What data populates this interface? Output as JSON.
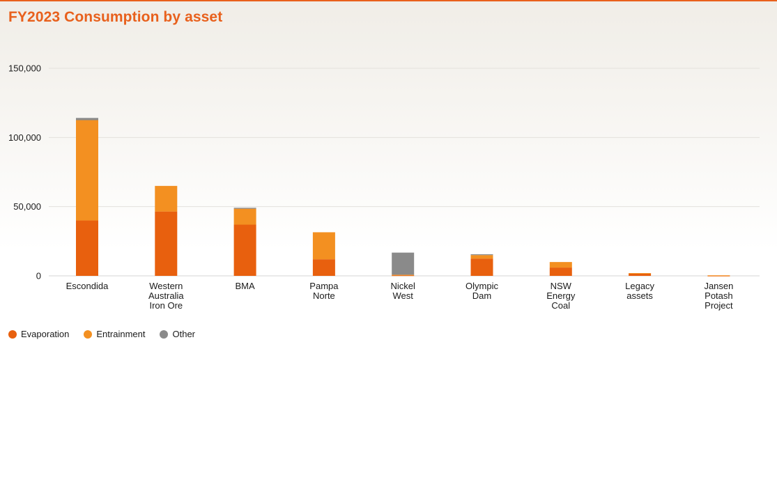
{
  "chart_data": {
    "type": "bar",
    "stacked": true,
    "title": "FY2023 Consumption by asset",
    "xlabel": "",
    "ylabel": "",
    "ylim": [
      0,
      150000
    ],
    "yticks": [
      0,
      50000,
      100000,
      150000
    ],
    "ytick_labels": [
      "0",
      "50,000",
      "100,000",
      "150,000"
    ],
    "grid": true,
    "legend_position": "bottom-left",
    "categories": [
      [
        "Escondida"
      ],
      [
        "Western",
        "Australia",
        "Iron Ore"
      ],
      [
        "BMA"
      ],
      [
        "Pampa",
        "Norte"
      ],
      [
        "Nickel",
        "West"
      ],
      [
        "Olympic",
        "Dam"
      ],
      [
        "NSW",
        "Energy",
        "Coal"
      ],
      [
        "Legacy",
        "assets"
      ],
      [
        "Jansen",
        "Potash",
        "Project"
      ]
    ],
    "series": [
      {
        "name": "Evaporation",
        "color": "#e8600e",
        "values": [
          40000,
          46500,
          37000,
          12000,
          400,
          12500,
          6000,
          1800,
          150
        ]
      },
      {
        "name": "Entrainment",
        "color": "#f39021",
        "values": [
          72500,
          18500,
          11500,
          19500,
          400,
          2500,
          4000,
          200,
          250
        ]
      },
      {
        "name": "Other",
        "color": "#8a8a8a",
        "values": [
          1600,
          0,
          700,
          0,
          16000,
          600,
          0,
          0,
          0
        ]
      }
    ]
  }
}
